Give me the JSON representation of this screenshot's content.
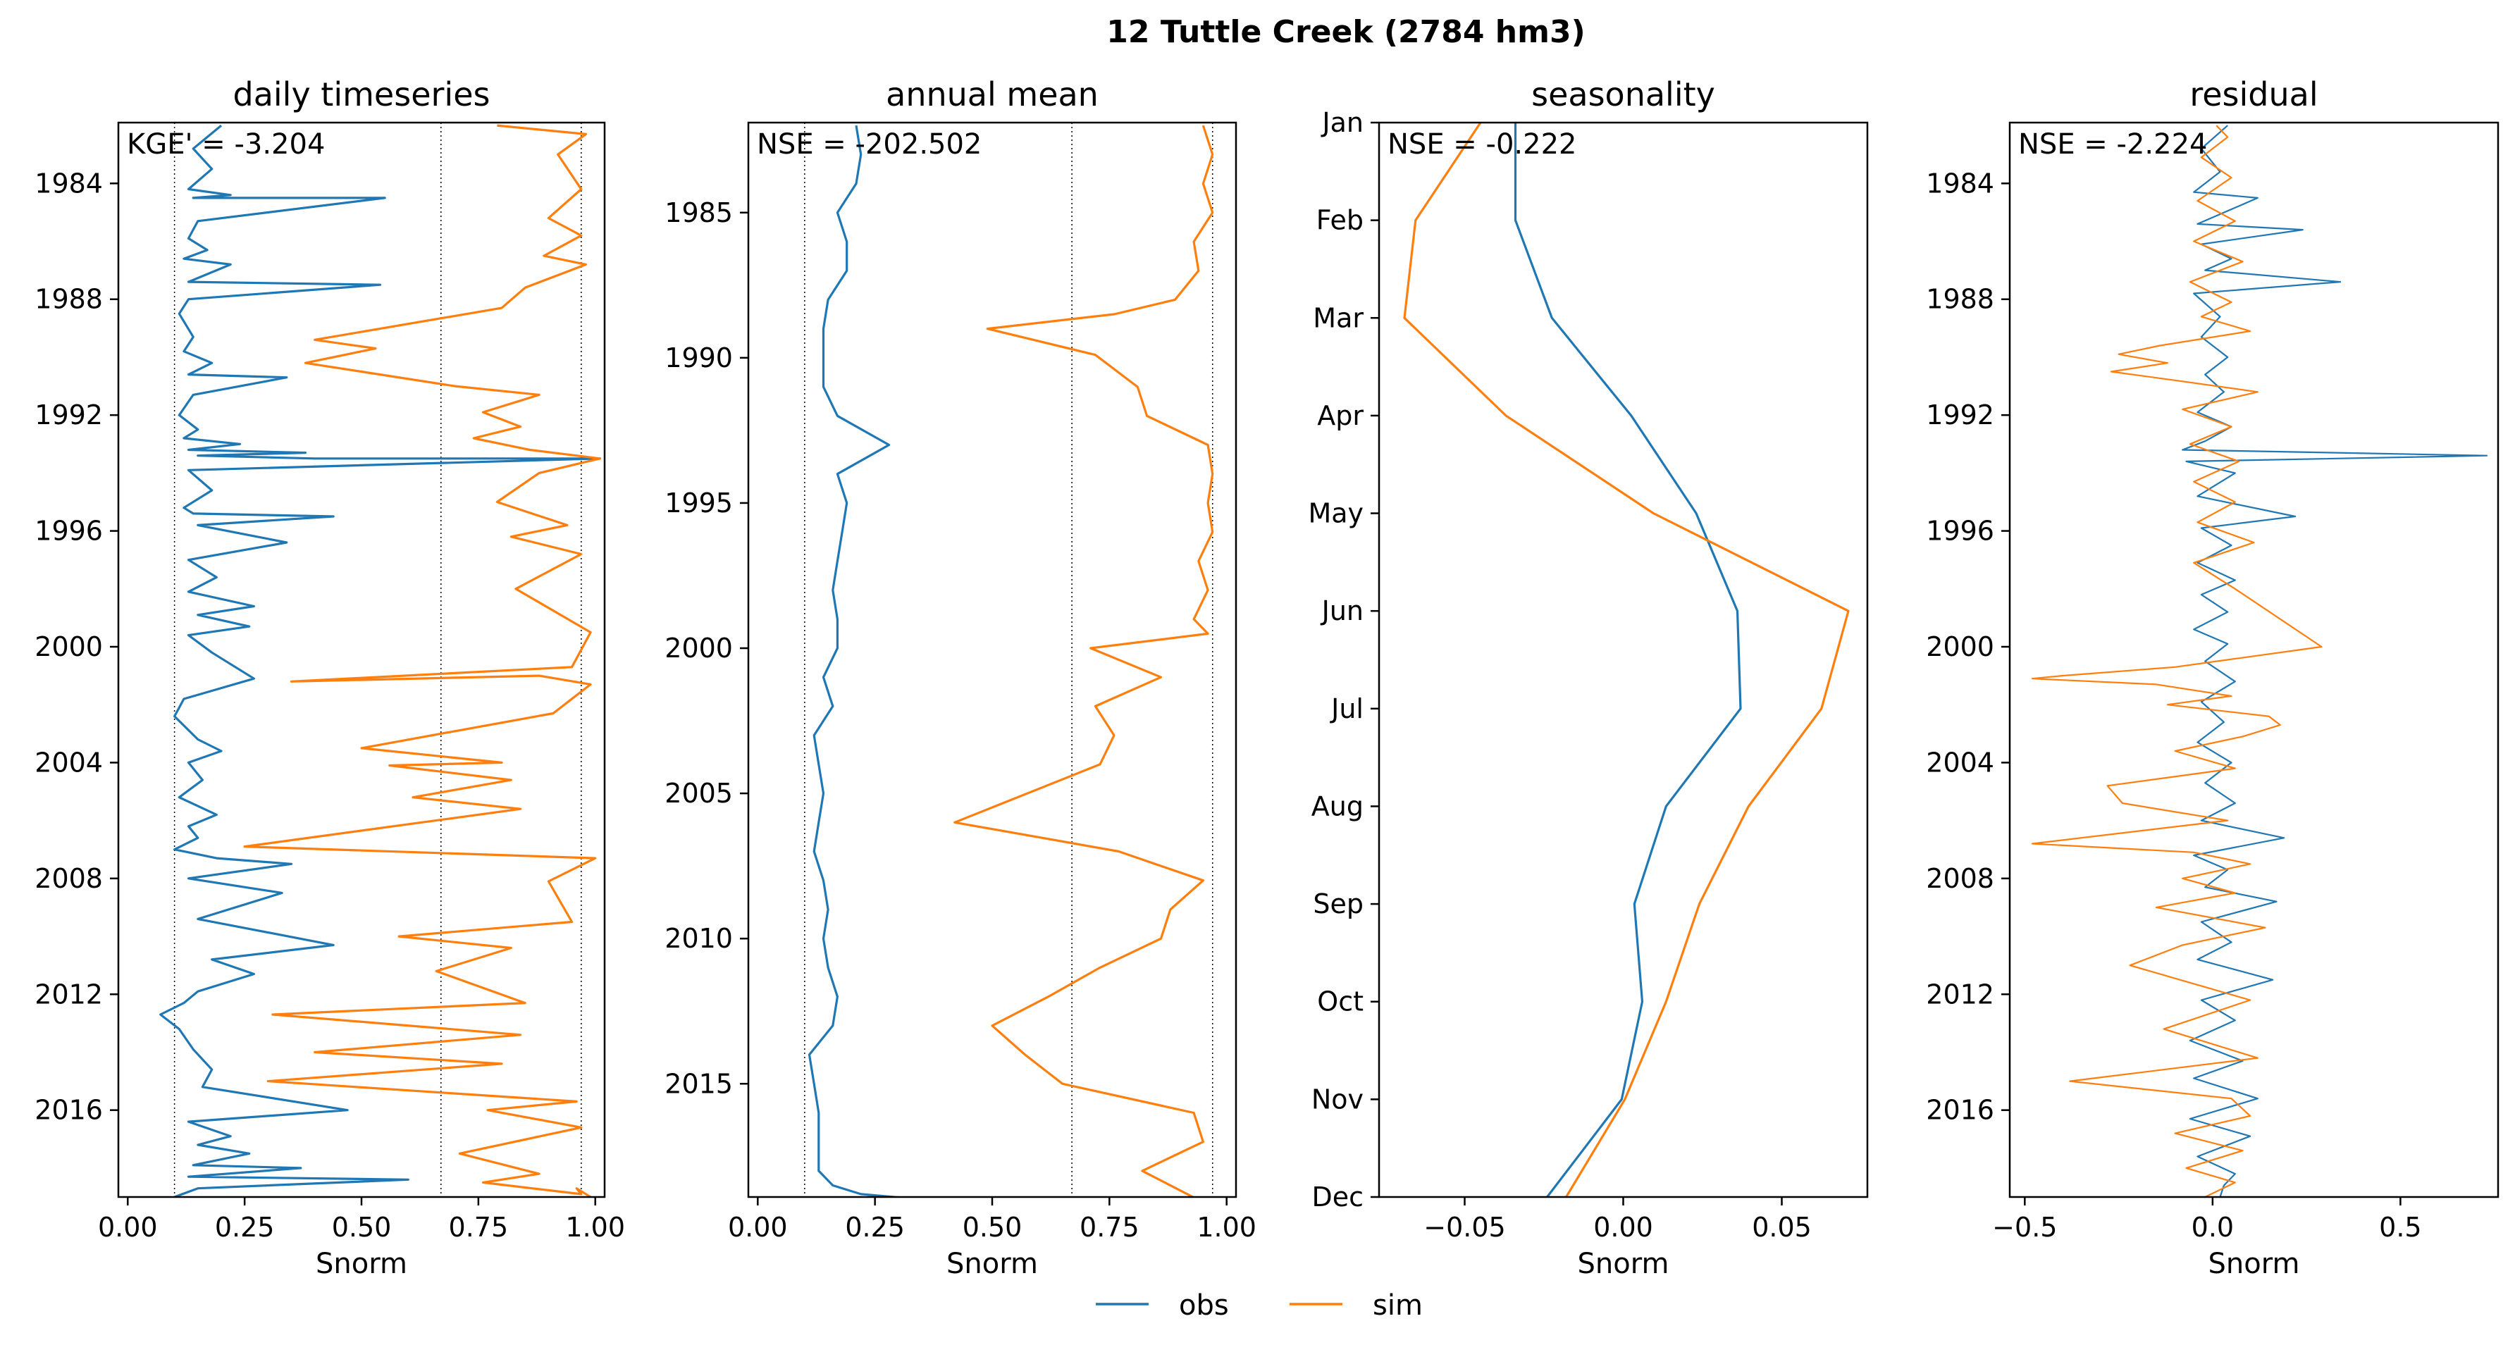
{
  "figure": {
    "suptitle": "12  Tuttle Creek (2784 hm3)",
    "legend": {
      "placement": "bottom-center",
      "entries": [
        {
          "label": "obs",
          "color": "#1f77b4"
        },
        {
          "label": "sim",
          "color": "#ff7f0e"
        }
      ]
    }
  },
  "colors": {
    "obs": "#1f77b4",
    "sim": "#ff7f0e",
    "refline": "#000000"
  },
  "chart_data": [
    {
      "type": "line",
      "title": "daily timeseries",
      "xlabel": "Snorm",
      "ylabel": "",
      "metric_label": "KGE' = -3.204",
      "orientation": "vertical-time",
      "xlim": [
        -0.02,
        1.02
      ],
      "ylim": [
        2019.0,
        1981.9
      ],
      "xticks": [
        0.0,
        0.25,
        0.5,
        0.75,
        1.0
      ],
      "xtick_labels": [
        "0.00",
        "0.25",
        "0.50",
        "0.75",
        "1.00"
      ],
      "yticks": [
        1984,
        1988,
        1992,
        1996,
        2000,
        2004,
        2008,
        2012,
        2016
      ],
      "ytick_labels": [
        "1984",
        "1988",
        "1992",
        "1996",
        "2000",
        "2004",
        "2008",
        "2012",
        "2016"
      ],
      "reference_lines_x": [
        0.1,
        0.67,
        0.97
      ],
      "series": [
        {
          "name": "obs",
          "x": [
            0.2,
            0.14,
            0.18,
            0.13,
            0.22,
            0.14,
            0.55,
            0.15,
            0.13,
            0.17,
            0.12,
            0.22,
            0.13,
            0.54,
            0.13,
            0.11,
            0.14,
            0.12,
            0.18,
            0.13,
            0.34,
            0.14,
            0.11,
            0.15,
            0.12,
            0.24,
            0.13,
            0.38,
            0.15,
            0.4,
            1.01,
            0.13,
            0.18,
            0.12,
            0.14,
            0.44,
            0.15,
            0.34,
            0.13,
            0.19,
            0.13,
            0.27,
            0.15,
            0.26,
            0.13,
            0.18,
            0.27,
            0.12,
            0.1,
            0.15,
            0.2,
            0.13,
            0.16,
            0.11,
            0.19,
            0.13,
            0.15,
            0.1,
            0.19,
            0.35,
            0.13,
            0.33,
            0.15,
            0.44,
            0.18,
            0.27,
            0.15,
            0.12,
            0.07,
            0.11,
            0.14,
            0.18,
            0.16,
            0.47,
            0.13,
            0.22,
            0.15,
            0.26,
            0.14,
            0.37,
            0.13,
            0.6,
            0.15,
            0.1
          ],
          "y": [
            1982.0,
            1982.8,
            1983.5,
            1984.2,
            1984.4,
            1984.5,
            1984.5,
            1985.3,
            1985.9,
            1986.3,
            1986.6,
            1986.8,
            1987.4,
            1987.5,
            1988.0,
            1988.5,
            1989.3,
            1989.8,
            1990.2,
            1990.6,
            1990.7,
            1991.3,
            1992.0,
            1992.5,
            1992.8,
            1993.0,
            1993.2,
            1993.3,
            1993.4,
            1993.5,
            1993.5,
            1993.9,
            1994.6,
            1995.2,
            1995.4,
            1995.5,
            1995.8,
            1996.4,
            1997.0,
            1997.6,
            1998.1,
            1998.6,
            1998.9,
            1999.3,
            1999.6,
            2000.2,
            2001.1,
            2001.8,
            2002.4,
            2003.2,
            2003.6,
            2004.0,
            2004.6,
            2005.2,
            2005.8,
            2006.2,
            2006.6,
            2007.0,
            2007.3,
            2007.5,
            2008.0,
            2008.5,
            2009.4,
            2010.3,
            2010.8,
            2011.3,
            2011.9,
            2012.3,
            2012.7,
            2013.2,
            2013.9,
            2014.6,
            2015.2,
            2016.0,
            2016.4,
            2016.9,
            2017.2,
            2017.5,
            2017.9,
            2018.0,
            2018.3,
            2018.4,
            2018.7,
            2019.0
          ]
        },
        {
          "name": "sim",
          "x": [
            0.79,
            0.98,
            0.92,
            0.97,
            0.9,
            0.97,
            0.89,
            0.98,
            0.85,
            0.8,
            0.4,
            0.53,
            0.38,
            0.5,
            0.7,
            0.88,
            0.76,
            0.84,
            0.74,
            0.86,
            1.01,
            0.88,
            0.79,
            0.94,
            0.82,
            0.97,
            0.83,
            0.99,
            0.95,
            0.35,
            0.88,
            0.99,
            0.91,
            0.5,
            0.8,
            0.56,
            0.82,
            0.61,
            0.84,
            0.25,
            1.0,
            0.9,
            0.95,
            0.58,
            0.82,
            0.66,
            0.85,
            0.31,
            0.84,
            0.4,
            0.8,
            0.3,
            0.96,
            0.77,
            0.97,
            0.71,
            0.88,
            0.76,
            0.97,
            0.96,
            0.99
          ],
          "y": [
            1982.0,
            1982.3,
            1983.0,
            1984.2,
            1985.2,
            1985.8,
            1986.5,
            1986.8,
            1987.6,
            1988.3,
            1989.4,
            1989.7,
            1990.2,
            1990.5,
            1991.0,
            1991.3,
            1991.9,
            1992.4,
            1992.8,
            1993.2,
            1993.5,
            1994.0,
            1995.0,
            1995.8,
            1996.2,
            1996.8,
            1998.0,
            1999.5,
            2000.7,
            2001.2,
            2001.0,
            2001.3,
            2002.3,
            2003.5,
            2004.0,
            2004.1,
            2004.6,
            2005.2,
            2005.6,
            2006.9,
            2007.3,
            2008.1,
            2009.5,
            2010.0,
            2010.4,
            2011.2,
            2012.3,
            2012.7,
            2013.4,
            2014.0,
            2014.4,
            2015.0,
            2015.7,
            2016.0,
            2016.6,
            2017.5,
            2018.2,
            2018.5,
            2018.9,
            2018.7,
            2019.0
          ]
        }
      ]
    },
    {
      "type": "line",
      "title": "annual mean",
      "xlabel": "Snorm",
      "ylabel": "",
      "metric_label": "NSE = -202.502",
      "orientation": "vertical-time",
      "xlim": [
        -0.02,
        1.02
      ],
      "ylim": [
        2018.9,
        1981.9
      ],
      "xticks": [
        0.0,
        0.25,
        0.5,
        0.75,
        1.0
      ],
      "xtick_labels": [
        "0.00",
        "0.25",
        "0.50",
        "0.75",
        "1.00"
      ],
      "yticks": [
        1985,
        1990,
        1995,
        2000,
        2005,
        2010,
        2015
      ],
      "ytick_labels": [
        "1985",
        "1990",
        "1995",
        "2000",
        "2005",
        "2010",
        "2015"
      ],
      "reference_lines_x": [
        0.1,
        0.67,
        0.97
      ],
      "series": [
        {
          "name": "obs",
          "x": [
            0.21,
            0.22,
            0.21,
            0.17,
            0.19,
            0.19,
            0.15,
            0.14,
            0.14,
            0.14,
            0.17,
            0.28,
            0.17,
            0.19,
            0.18,
            0.17,
            0.16,
            0.17,
            0.17,
            0.14,
            0.16,
            0.12,
            0.13,
            0.14,
            0.13,
            0.12,
            0.14,
            0.15,
            0.14,
            0.15,
            0.17,
            0.16,
            0.11,
            0.12,
            0.13,
            0.13,
            0.13,
            0.16,
            0.22,
            0.36
          ],
          "y": [
            1982.0,
            1983.0,
            1984.0,
            1985.0,
            1986.0,
            1987.0,
            1988.0,
            1989.0,
            1990.0,
            1991.0,
            1992.0,
            1993.0,
            1994.0,
            1995.0,
            1996.0,
            1997.0,
            1998.0,
            1999.0,
            2000.0,
            2001.0,
            2002.0,
            2003.0,
            2004.0,
            2005.0,
            2006.0,
            2007.0,
            2008.0,
            2009.0,
            2010.0,
            2011.0,
            2012.0,
            2013.0,
            2014.0,
            2015.0,
            2016.0,
            2017.0,
            2018.0,
            2018.5,
            2018.8,
            2019.0
          ]
        },
        {
          "name": "sim",
          "x": [
            0.95,
            0.97,
            0.95,
            0.97,
            0.93,
            0.94,
            0.89,
            0.76,
            0.49,
            0.72,
            0.81,
            0.83,
            0.96,
            0.97,
            0.96,
            0.97,
            0.94,
            0.96,
            0.93,
            0.96,
            0.71,
            0.86,
            0.72,
            0.76,
            0.73,
            0.42,
            0.77,
            0.95,
            0.88,
            0.86,
            0.73,
            0.62,
            0.5,
            0.57,
            0.65,
            0.93,
            0.95,
            0.82,
            0.94
          ],
          "y": [
            1982.0,
            1983.0,
            1984.0,
            1985.0,
            1986.0,
            1987.0,
            1988.0,
            1988.5,
            1989.0,
            1989.9,
            1991.0,
            1992.0,
            1993.0,
            1994.0,
            1995.0,
            1996.0,
            1997.0,
            1998.0,
            1999.0,
            1999.5,
            2000.0,
            2001.0,
            2002.0,
            2003.0,
            2004.0,
            2006.0,
            2007.0,
            2008.0,
            2009.0,
            2010.0,
            2011.0,
            2012.0,
            2013.0,
            2014.0,
            2015.0,
            2016.0,
            2017.0,
            2018.0,
            2019.0
          ]
        }
      ]
    },
    {
      "type": "line",
      "title": "seasonality",
      "xlabel": "Snorm",
      "ylabel": "",
      "metric_label": "NSE = -0.222",
      "orientation": "vertical-time",
      "xlim": [
        -0.077,
        0.077
      ],
      "ylim": [
        11,
        0
      ],
      "xticks": [
        -0.05,
        0.0,
        0.05
      ],
      "xtick_labels": [
        "−0.05",
        "0.00",
        "0.05"
      ],
      "yticks": [
        0,
        1,
        2,
        3,
        4,
        5,
        6,
        7,
        8,
        9,
        10,
        11
      ],
      "ytick_labels": [
        "Jan",
        "Feb",
        "Mar",
        "Apr",
        "May",
        "Jun",
        "Jul",
        "Aug",
        "Sep",
        "Oct",
        "Nov",
        "Dec"
      ],
      "reference_lines_x": [],
      "series": [
        {
          "name": "obs",
          "x": [
            -0.034,
            -0.034,
            -0.0225,
            0.0025,
            0.023,
            0.036,
            0.037,
            0.0135,
            0.0035,
            0.006,
            -0.0005,
            -0.024
          ],
          "y": [
            0,
            1,
            2,
            3,
            4,
            5,
            6,
            7,
            8,
            9,
            10,
            11
          ]
        },
        {
          "name": "sim",
          "x": [
            -0.045,
            -0.0655,
            -0.069,
            -0.037,
            0.0095,
            0.071,
            0.0625,
            0.0395,
            0.024,
            0.0135,
            0.0005,
            -0.018
          ],
          "y": [
            0,
            1,
            2,
            3,
            4,
            5,
            6,
            7,
            8,
            9,
            10,
            11
          ]
        }
      ]
    },
    {
      "type": "line",
      "title": "residual",
      "xlabel": "Snorm",
      "ylabel": "",
      "metric_label": "NSE = -2.224",
      "orientation": "vertical-time",
      "xlim": [
        -0.54,
        0.76
      ],
      "ylim": [
        2019.0,
        1981.9
      ],
      "xticks": [
        -0.5,
        0.0,
        0.5
      ],
      "xtick_labels": [
        "−0.5",
        "0.0",
        "0.5"
      ],
      "yticks": [
        1984,
        1988,
        1992,
        1996,
        2000,
        2004,
        2008,
        2012,
        2016
      ],
      "ytick_labels": [
        "1984",
        "1988",
        "1992",
        "1996",
        "2000",
        "2004",
        "2008",
        "2012",
        "2016"
      ],
      "reference_lines_x": [],
      "series": [
        {
          "name": "obs",
          "x": [
            0.04,
            -0.03,
            0.02,
            -0.05,
            0.12,
            -0.04,
            0.24,
            -0.03,
            0.05,
            -0.02,
            0.34,
            -0.05,
            0.02,
            -0.03,
            0.04,
            -0.02,
            0.03,
            -0.04,
            0.05,
            -0.02,
            -0.08,
            0.73,
            -0.07,
            0.06,
            -0.04,
            0.22,
            -0.03,
            0.05,
            -0.04,
            0.06,
            -0.03,
            0.04,
            -0.05,
            0.04,
            -0.02,
            0.06,
            -0.03,
            0.03,
            -0.04,
            0.05,
            -0.02,
            0.06,
            -0.03,
            0.19,
            -0.05,
            0.04,
            -0.02,
            0.17,
            -0.03,
            0.05,
            -0.04,
            0.16,
            -0.03,
            0.06,
            -0.06,
            0.08,
            -0.05,
            0.12,
            -0.06,
            0.1,
            -0.04,
            0.06,
            0.03,
            0.02
          ],
          "y": [
            1982.0,
            1982.8,
            1983.6,
            1984.3,
            1984.5,
            1985.4,
            1985.6,
            1986.1,
            1986.6,
            1987.0,
            1987.4,
            1987.8,
            1988.6,
            1989.3,
            1990.0,
            1990.6,
            1991.2,
            1991.9,
            1992.4,
            1992.9,
            1993.2,
            1993.4,
            1993.6,
            1994.0,
            1994.8,
            1995.5,
            1995.9,
            1996.5,
            1997.1,
            1997.7,
            1998.2,
            1998.8,
            1999.4,
            1999.9,
            2000.5,
            2001.2,
            2001.9,
            2002.6,
            2003.3,
            2004.0,
            2004.7,
            2005.4,
            2006.0,
            2006.6,
            2007.2,
            2007.7,
            2008.3,
            2008.8,
            2009.5,
            2010.2,
            2010.8,
            2011.5,
            2012.2,
            2012.9,
            2013.6,
            2014.3,
            2014.9,
            2015.6,
            2016.3,
            2016.9,
            2017.6,
            2018.2,
            2018.6,
            2019.0
          ]
        },
        {
          "name": "sim",
          "x": [
            0.01,
            0.04,
            -0.03,
            0.05,
            -0.04,
            0.06,
            -0.05,
            0.08,
            -0.06,
            0.05,
            -0.03,
            0.1,
            -0.14,
            -0.25,
            -0.12,
            -0.27,
            -0.1,
            0.12,
            -0.08,
            0.05,
            -0.06,
            0.07,
            -0.05,
            0.06,
            -0.04,
            0.11,
            -0.05,
            0.06,
            0.29,
            -0.1,
            -0.4,
            -0.48,
            -0.15,
            0.05,
            -0.12,
            0.15,
            0.18,
            0.08,
            -0.1,
            0.06,
            -0.28,
            -0.24,
            0.04,
            -0.48,
            -0.05,
            0.1,
            -0.08,
            0.06,
            -0.15,
            0.14,
            -0.08,
            -0.22,
            0.1,
            -0.13,
            0.12,
            -0.38,
            0.05,
            0.1,
            -0.1,
            0.08,
            -0.07,
            0.06,
            -0.02
          ],
          "y": [
            1982.0,
            1982.4,
            1983.1,
            1983.8,
            1984.6,
            1985.3,
            1986.0,
            1986.7,
            1987.4,
            1988.1,
            1988.6,
            1989.1,
            1989.6,
            1989.9,
            1990.2,
            1990.5,
            1990.8,
            1991.2,
            1991.8,
            1992.4,
            1993.0,
            1993.6,
            1994.3,
            1995.0,
            1995.7,
            1996.4,
            1997.1,
            1998.0,
            2000.0,
            2000.7,
            2001.0,
            2001.1,
            2001.3,
            2001.7,
            2002.0,
            2002.4,
            2002.7,
            2003.1,
            2003.6,
            2004.2,
            2004.8,
            2005.4,
            2006.0,
            2006.8,
            2007.1,
            2007.5,
            2008.0,
            2008.5,
            2009.0,
            2009.7,
            2010.3,
            2011.0,
            2012.2,
            2013.2,
            2014.2,
            2015.0,
            2015.6,
            2016.2,
            2016.8,
            2017.4,
            2018.0,
            2018.5,
            2019.0
          ]
        }
      ]
    }
  ]
}
